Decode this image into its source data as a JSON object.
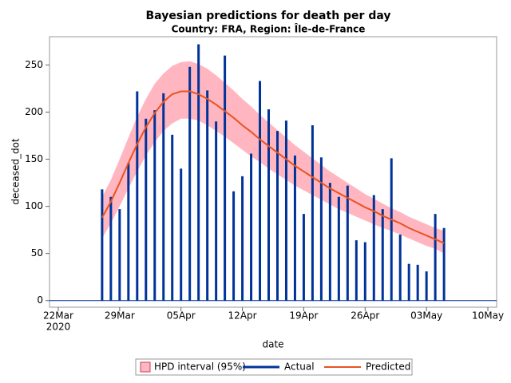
{
  "chart_data": {
    "type": "needle-band",
    "title": "Bayesian predictions for death per day",
    "subtitle": "Country: FRA, Region: Île-de-France",
    "x_label": "date",
    "y_label": "deceased_dot",
    "x": [
      "2020-03-27",
      "2020-03-28",
      "2020-03-29",
      "2020-03-30",
      "2020-03-31",
      "2020-04-01",
      "2020-04-02",
      "2020-04-03",
      "2020-04-04",
      "2020-04-05",
      "2020-04-06",
      "2020-04-07",
      "2020-04-08",
      "2020-04-09",
      "2020-04-10",
      "2020-04-11",
      "2020-04-12",
      "2020-04-13",
      "2020-04-14",
      "2020-04-15",
      "2020-04-16",
      "2020-04-17",
      "2020-04-18",
      "2020-04-19",
      "2020-04-20",
      "2020-04-21",
      "2020-04-22",
      "2020-04-23",
      "2020-04-24",
      "2020-04-25",
      "2020-04-26",
      "2020-04-27",
      "2020-04-28",
      "2020-04-29",
      "2020-04-30",
      "2020-05-01",
      "2020-05-02",
      "2020-05-03",
      "2020-05-04",
      "2020-05-05"
    ],
    "xlim": [
      "2020-03-21",
      "2020-05-11"
    ],
    "xticks": [
      {
        "value": "2020-03-22",
        "label": "22Mar",
        "year": "2020"
      },
      {
        "value": "2020-03-29",
        "label": "29Mar"
      },
      {
        "value": "2020-04-05",
        "label": "05Apr"
      },
      {
        "value": "2020-04-12",
        "label": "12Apr"
      },
      {
        "value": "2020-04-19",
        "label": "19Apr"
      },
      {
        "value": "2020-04-26",
        "label": "26Apr"
      },
      {
        "value": "2020-05-03",
        "label": "03May"
      },
      {
        "value": "2020-05-10",
        "label": "10May"
      }
    ],
    "ylim": [
      -7,
      280
    ],
    "yticks": [
      0,
      50,
      100,
      150,
      200,
      250
    ],
    "series": [
      {
        "name": "HPD interval (95%)",
        "color": "#ffb6c1",
        "upper": [
          110,
          128,
          150,
          173,
          195,
          214,
          230,
          241,
          249,
          253,
          254,
          251,
          246,
          239,
          231,
          223,
          214,
          206,
          197,
          189,
          181,
          173,
          165,
          158,
          151,
          144,
          137,
          131,
          125,
          119,
          113,
          108,
          103,
          98,
          94,
          89,
          85,
          81,
          77,
          74
        ],
        "lower": [
          66,
          82,
          100,
          119,
          137,
          154,
          168,
          180,
          188,
          193,
          193,
          191,
          186,
          180,
          174,
          167,
          160,
          153,
          147,
          140,
          134,
          128,
          122,
          117,
          112,
          107,
          102,
          97,
          93,
          89,
          85,
          81,
          77,
          74,
          70,
          66,
          62,
          58,
          55,
          50
        ]
      },
      {
        "name": "Actual",
        "color": "#003399",
        "values": [
          118,
          110,
          97,
          146,
          222,
          193,
          202,
          220,
          176,
          140,
          248,
          272,
          223,
          190,
          260,
          116,
          132,
          156,
          233,
          203,
          180,
          191,
          154,
          92,
          186,
          152,
          125,
          110,
          122,
          64,
          62,
          112,
          97,
          151,
          70,
          39,
          38,
          31,
          92,
          77
        ]
      },
      {
        "name": "Predicted",
        "color": "#e8531f",
        "values": [
          88,
          105,
          125,
          146,
          166,
          184,
          199,
          211,
          219,
          222,
          222,
          219,
          214,
          208,
          201,
          194,
          186,
          179,
          171,
          164,
          157,
          150,
          143,
          137,
          131,
          125,
          119,
          114,
          109,
          104,
          99,
          95,
          90,
          86,
          82,
          77,
          73,
          69,
          65,
          61
        ]
      }
    ]
  }
}
